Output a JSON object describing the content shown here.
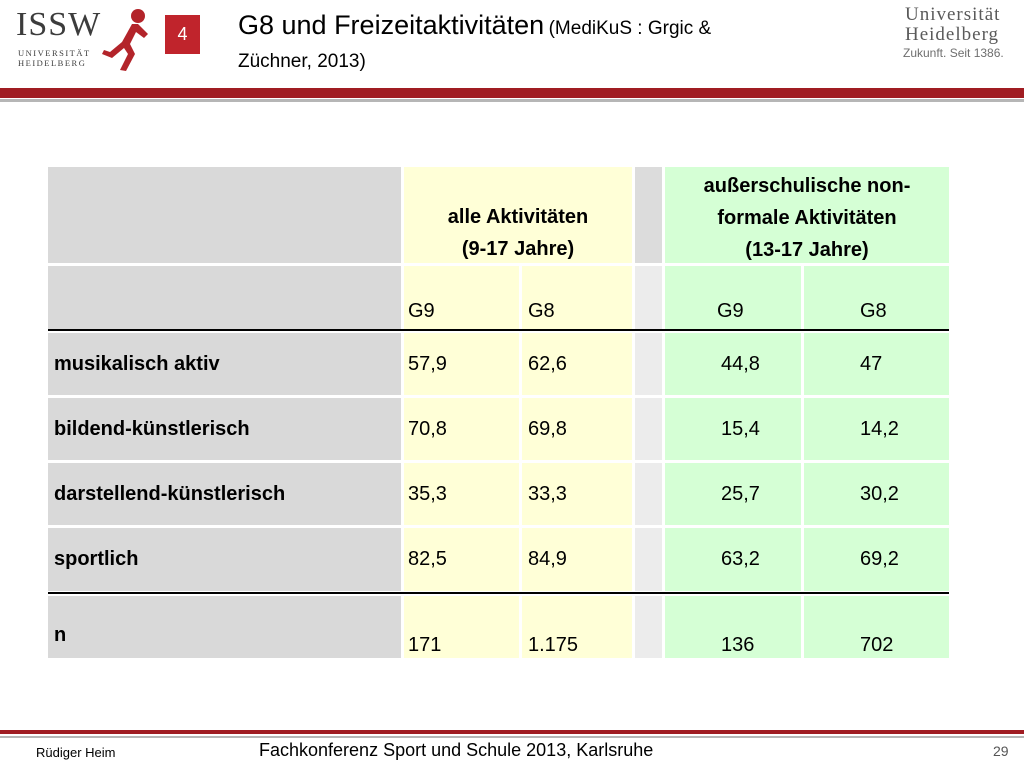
{
  "header": {
    "logo_left": {
      "big": "ISSW",
      "line1": "UNIVERSITÄT",
      "line2": "HEIDELBERG"
    },
    "slide_number": "4",
    "title_main": "G8 und Freizeitaktivitäten",
    "title_source_1": "(MediKuS : Grgic &",
    "title_source_2": "Züchner, 2013)",
    "logo_right": {
      "line1": "Universität",
      "line2": "Heidelberg",
      "line3": "Zukunft. Seit 1386."
    }
  },
  "table": {
    "group1": {
      "line1": "alle Aktivitäten",
      "line2": "(9-17 Jahre)"
    },
    "group2": {
      "line1": "außerschulische non-",
      "line2": "formale Aktivitäten",
      "line3": "(13-17 Jahre)"
    },
    "subheaders": [
      "G9",
      "G8",
      "G9",
      "G8"
    ],
    "rows": [
      {
        "label": "musikalisch aktiv",
        "values": [
          "57,9",
          "62,6",
          "44,8",
          "47"
        ]
      },
      {
        "label": "bildend-künstlerisch",
        "values": [
          "70,8",
          "69,8",
          "15,4",
          "14,2"
        ]
      },
      {
        "label": "darstellend-künstlerisch",
        "values": [
          "35,3",
          "33,3",
          "25,7",
          "30,2"
        ]
      },
      {
        "label": "sportlich",
        "values": [
          "82,5",
          "84,9",
          "63,2",
          "69,2"
        ]
      },
      {
        "label": "n",
        "values": [
          "171",
          "1.175",
          "136",
          "702"
        ]
      }
    ]
  },
  "footer": {
    "author": "Rüdiger Heim",
    "conference": "Fachkonferenz Sport und Schule 2013, Karlsruhe",
    "page": "29"
  },
  "colors": {
    "accent": "#a01c22",
    "slide_number_bg": "#c0242c",
    "label_column": "#d9d9d9",
    "group1_bg": "#ffffd7",
    "group2_bg": "#d5ffd5"
  }
}
